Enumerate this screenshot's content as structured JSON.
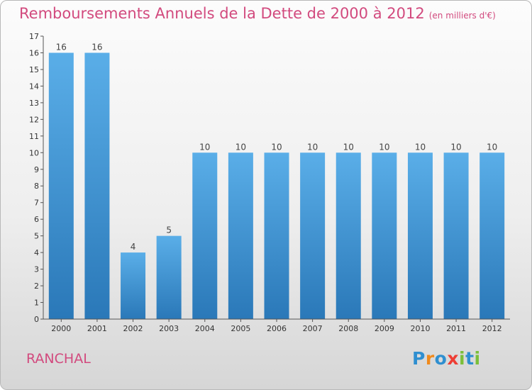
{
  "header": {
    "title": "Remboursements Annuels de la Dette de 2000 à 2012",
    "unit": "(en milliers d'€)"
  },
  "commune": "RANCHAL",
  "logo": {
    "text": "Proxiti",
    "letters": [
      "P",
      "r",
      "o",
      "x",
      "i",
      "t",
      "i"
    ],
    "colors": [
      "#2f8fd0",
      "#f08a1c",
      "#2f8fd0",
      "#ee3d34",
      "#7bbf3a",
      "#2f8fd0",
      "#7bbf3a"
    ]
  },
  "colors": {
    "title": "#d24a7e",
    "bar_light": "#5aaee8",
    "bar_dark": "#2a78b8"
  },
  "chart_data": {
    "type": "bar",
    "title": "Remboursements Annuels de la Dette de 2000 à 2012",
    "subtitle": "(en milliers d'€)",
    "categories": [
      "2000",
      "2001",
      "2002",
      "2003",
      "2004",
      "2005",
      "2006",
      "2007",
      "2008",
      "2009",
      "2010",
      "2011",
      "2012"
    ],
    "values": [
      16,
      16,
      4,
      5,
      10,
      10,
      10,
      10,
      10,
      10,
      10,
      10,
      10
    ],
    "value_labels": [
      "16",
      "16",
      "4",
      "5",
      "10",
      "10",
      "10",
      "10",
      "10",
      "10",
      "10",
      "10",
      "10"
    ],
    "yticks": [
      "0",
      "1",
      "2",
      "3",
      "4",
      "5",
      "6",
      "7",
      "8",
      "9",
      "10",
      "11",
      "12",
      "13",
      "14",
      "15",
      "16",
      "17"
    ],
    "ylim": [
      0,
      17
    ],
    "grid": false,
    "legend": "none"
  }
}
